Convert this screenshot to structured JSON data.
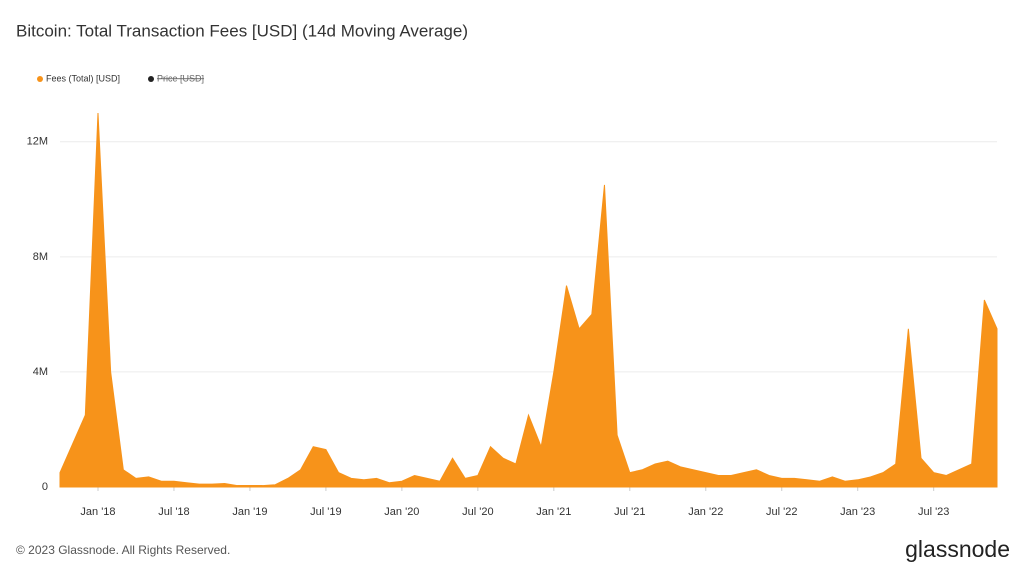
{
  "chart_data": {
    "type": "area",
    "title": "Bitcoin: Total Transaction Fees [USD] (14d Moving Average)",
    "x": [
      "2017-10",
      "2017-11",
      "2017-12",
      "2018-01",
      "2018-02",
      "2018-03",
      "2018-04",
      "2018-05",
      "2018-06",
      "2018-07",
      "2018-08",
      "2018-09",
      "2018-10",
      "2018-11",
      "2018-12",
      "2019-01",
      "2019-02",
      "2019-03",
      "2019-04",
      "2019-05",
      "2019-06",
      "2019-07",
      "2019-08",
      "2019-09",
      "2019-10",
      "2019-11",
      "2019-12",
      "2020-01",
      "2020-02",
      "2020-03",
      "2020-04",
      "2020-05",
      "2020-06",
      "2020-07",
      "2020-08",
      "2020-09",
      "2020-10",
      "2020-11",
      "2020-12",
      "2021-01",
      "2021-02",
      "2021-03",
      "2021-04",
      "2021-05",
      "2021-06",
      "2021-07",
      "2021-08",
      "2021-09",
      "2021-10",
      "2021-11",
      "2021-12",
      "2022-01",
      "2022-02",
      "2022-03",
      "2022-04",
      "2022-05",
      "2022-06",
      "2022-07",
      "2022-08",
      "2022-09",
      "2022-10",
      "2022-11",
      "2022-12",
      "2023-01",
      "2023-02",
      "2023-03",
      "2023-04",
      "2023-05",
      "2023-06",
      "2023-07",
      "2023-08",
      "2023-09",
      "2023-10",
      "2023-11",
      "2023-12"
    ],
    "series": [
      {
        "name": "Fees (Total) [USD]",
        "color": "#f7931a",
        "values": [
          500000,
          1500000,
          2500000,
          13000000,
          4000000,
          600000,
          300000,
          350000,
          200000,
          200000,
          150000,
          100000,
          100000,
          120000,
          50000,
          50000,
          50000,
          80000,
          300000,
          600000,
          1400000,
          1300000,
          500000,
          300000,
          250000,
          300000,
          150000,
          200000,
          400000,
          300000,
          200000,
          1000000,
          300000,
          400000,
          1400000,
          1000000,
          800000,
          2500000,
          1400000,
          4000000,
          7000000,
          5500000,
          6000000,
          10500000,
          1800000,
          500000,
          600000,
          800000,
          900000,
          700000,
          600000,
          500000,
          400000,
          400000,
          500000,
          600000,
          400000,
          300000,
          300000,
          250000,
          200000,
          350000,
          200000,
          250000,
          350000,
          500000,
          800000,
          5500000,
          1000000,
          500000,
          400000,
          600000,
          800000,
          6500000,
          5500000
        ]
      },
      {
        "name": "Price [USD]",
        "color": "#222222",
        "hidden": true
      }
    ],
    "xlim": [
      "2017-10",
      "2023-12"
    ],
    "xticks": [
      {
        "value": "2018-01",
        "label": "Jan '18"
      },
      {
        "value": "2018-07",
        "label": "Jul '18"
      },
      {
        "value": "2019-01",
        "label": "Jan '19"
      },
      {
        "value": "2019-07",
        "label": "Jul '19"
      },
      {
        "value": "2020-01",
        "label": "Jan '20"
      },
      {
        "value": "2020-07",
        "label": "Jul '20"
      },
      {
        "value": "2021-01",
        "label": "Jan '21"
      },
      {
        "value": "2021-07",
        "label": "Jul '21"
      },
      {
        "value": "2022-01",
        "label": "Jan '22"
      },
      {
        "value": "2022-07",
        "label": "Jul '22"
      },
      {
        "value": "2023-01",
        "label": "Jan '23"
      },
      {
        "value": "2023-07",
        "label": "Jul '23"
      }
    ],
    "ylim": [
      0,
      13800000
    ],
    "yticks": [
      0,
      {
        "value": 4000000,
        "label": "4M"
      },
      {
        "value": 8000000,
        "label": "8M"
      },
      {
        "value": 12000000,
        "label": "12M"
      }
    ],
    "grid": true
  },
  "footer": {
    "copyright": "© 2023 Glassnode. All Rights Reserved.",
    "logo": "glassnode"
  }
}
